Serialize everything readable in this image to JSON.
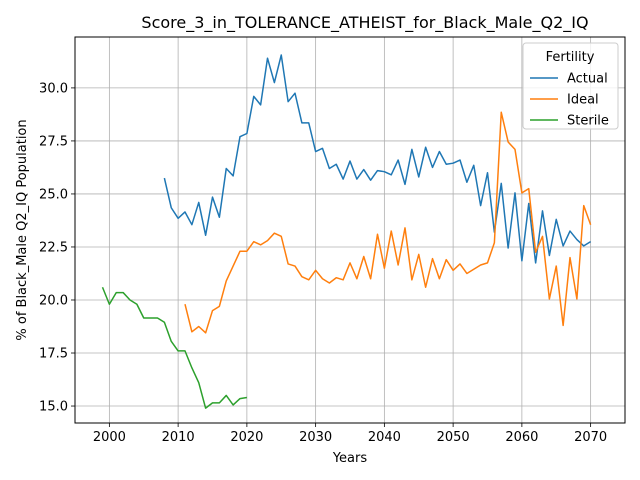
{
  "chart_data": {
    "type": "line",
    "title": "Score_3_in_TOLERANCE_ATHEIST_for_Black_Male_Q2_IQ",
    "xlabel": "Years",
    "ylabel": "% of Black_Male Q2_IQ Population",
    "xlim": [
      1995,
      2075
    ],
    "ylim": [
      14.2,
      32.4
    ],
    "xticks": [
      2000,
      2010,
      2020,
      2030,
      2040,
      2050,
      2060,
      2070
    ],
    "yticks": [
      15.0,
      17.5,
      20.0,
      22.5,
      25.0,
      27.5,
      30.0
    ],
    "ytick_labels": [
      "15.0",
      "17.5",
      "20.0",
      "22.5",
      "25.0",
      "27.5",
      "30.0"
    ],
    "grid": true,
    "legend": {
      "title": "Fertility",
      "position": "top-right"
    },
    "series": [
      {
        "name": "Actual",
        "color": "#1f77b4",
        "x": [
          2008,
          2009,
          2010,
          2011,
          2012,
          2013,
          2014,
          2015,
          2016,
          2017,
          2018,
          2019,
          2020,
          2021,
          2022,
          2023,
          2024,
          2025,
          2026,
          2027,
          2028,
          2029,
          2030,
          2031,
          2032,
          2033,
          2034,
          2035,
          2036,
          2037,
          2038,
          2039,
          2040,
          2041,
          2042,
          2043,
          2044,
          2045,
          2046,
          2047,
          2048,
          2049,
          2050,
          2051,
          2052,
          2053,
          2054,
          2055,
          2056,
          2057,
          2058,
          2059,
          2060,
          2061,
          2062,
          2063,
          2064,
          2065,
          2066,
          2067,
          2068,
          2069,
          2070
        ],
        "values": [
          25.75,
          24.35,
          23.85,
          24.15,
          23.55,
          24.6,
          23.05,
          24.85,
          23.9,
          26.2,
          25.85,
          27.7,
          27.85,
          29.6,
          29.2,
          31.4,
          30.25,
          31.55,
          29.35,
          29.75,
          28.35,
          28.35,
          27.0,
          27.15,
          26.2,
          26.4,
          25.7,
          26.55,
          25.7,
          26.15,
          25.65,
          26.1,
          26.05,
          25.9,
          26.6,
          25.45,
          27.1,
          25.8,
          27.2,
          26.25,
          27.0,
          26.4,
          26.45,
          26.6,
          25.55,
          26.35,
          24.45,
          26.0,
          23.2,
          25.5,
          22.45,
          25.05,
          21.85,
          24.55,
          21.75,
          24.2,
          22.1,
          23.8,
          22.55,
          23.25,
          22.85,
          22.55,
          22.75
        ]
      },
      {
        "name": "Ideal",
        "color": "#ff7f0e",
        "x": [
          2011,
          2012,
          2013,
          2014,
          2015,
          2016,
          2017,
          2018,
          2019,
          2020,
          2021,
          2022,
          2023,
          2024,
          2025,
          2026,
          2027,
          2028,
          2029,
          2030,
          2031,
          2032,
          2033,
          2034,
          2035,
          2036,
          2037,
          2038,
          2039,
          2040,
          2041,
          2042,
          2043,
          2044,
          2045,
          2046,
          2047,
          2048,
          2049,
          2050,
          2051,
          2052,
          2053,
          2054,
          2055,
          2056,
          2057,
          2058,
          2059,
          2060,
          2061,
          2062,
          2063,
          2064,
          2065,
          2066,
          2067,
          2068,
          2069,
          2070
        ],
        "values": [
          19.8,
          18.5,
          18.75,
          18.45,
          19.5,
          19.7,
          20.9,
          21.6,
          22.3,
          22.3,
          22.75,
          22.6,
          22.8,
          23.15,
          23.0,
          21.7,
          21.6,
          21.1,
          20.95,
          21.4,
          21.0,
          20.8,
          21.05,
          20.95,
          21.75,
          21.0,
          22.05,
          21.0,
          23.1,
          21.5,
          23.25,
          21.65,
          23.4,
          20.95,
          22.15,
          20.6,
          21.95,
          21.0,
          21.9,
          21.4,
          21.7,
          21.25,
          21.45,
          21.65,
          21.75,
          22.7,
          28.85,
          27.45,
          27.1,
          25.05,
          25.25,
          22.25,
          23.0,
          20.05,
          21.6,
          18.8,
          22.0,
          20.05,
          24.45,
          23.55
        ]
      },
      {
        "name": "Sterile",
        "color": "#2ca02c",
        "x": [
          1999,
          2000,
          2001,
          2002,
          2003,
          2004,
          2005,
          2006,
          2007,
          2008,
          2009,
          2010,
          2011,
          2012,
          2013,
          2014,
          2015,
          2016,
          2017,
          2018,
          2019,
          2020
        ],
        "values": [
          20.6,
          19.8,
          20.35,
          20.35,
          20.0,
          19.8,
          19.15,
          19.15,
          19.15,
          18.95,
          18.05,
          17.6,
          17.6,
          16.8,
          16.1,
          14.9,
          15.15,
          15.15,
          15.5,
          15.05,
          15.35,
          15.4
        ]
      }
    ]
  }
}
